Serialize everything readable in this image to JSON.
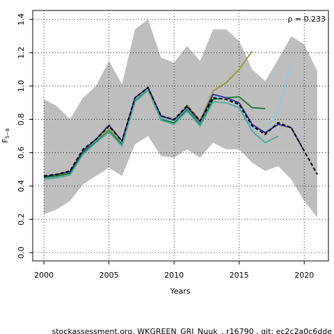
{
  "chart_data": {
    "type": "line",
    "ylabel_main": "F",
    "ylabel_sub": "5−8",
    "xlabel": "Years",
    "annotation": "ρ = 0.233",
    "footer": "stockassessment.org, WKGREEN_GRI_Nuuk_, r16790 , git: ec2c2a0c6dde",
    "x": [
      2000,
      2001,
      2002,
      2003,
      2004,
      2005,
      2006,
      2007,
      2008,
      2009,
      2010,
      2011,
      2012,
      2013,
      2014,
      2015,
      2016,
      2017,
      2018,
      2019,
      2020,
      2021
    ],
    "band": {
      "color": "#bebebe",
      "upper": [
        0.92,
        0.88,
        0.8,
        0.93,
        1.0,
        1.15,
        1.01,
        1.34,
        1.4,
        1.17,
        1.14,
        1.24,
        1.15,
        1.34,
        1.34,
        1.27,
        1.1,
        1.03,
        1.16,
        1.3,
        1.25,
        1.09
      ],
      "lower": [
        0.23,
        0.26,
        0.31,
        0.41,
        0.46,
        0.51,
        0.46,
        0.65,
        0.7,
        0.58,
        0.57,
        0.62,
        0.57,
        0.66,
        0.62,
        0.62,
        0.54,
        0.49,
        0.52,
        0.44,
        0.31,
        0.21
      ]
    },
    "series": [
      {
        "color": "#999933",
        "values": [
          0.45,
          0.465,
          0.48,
          0.605,
          0.67,
          0.745,
          0.655,
          0.925,
          0.995,
          0.815,
          0.79,
          0.885,
          0.795,
          0.97,
          1.02,
          1.1,
          1.21,
          null,
          null,
          null,
          null,
          null
        ]
      },
      {
        "color": "#117733",
        "values": [
          0.45,
          0.46,
          0.475,
          0.6,
          0.665,
          0.73,
          0.65,
          0.91,
          0.98,
          0.8,
          0.78,
          0.86,
          0.77,
          0.92,
          0.93,
          0.935,
          0.87,
          0.865,
          null,
          null,
          null,
          null
        ]
      },
      {
        "color": "#44aa99",
        "values": [
          0.44,
          0.45,
          0.465,
          0.59,
          0.66,
          0.725,
          0.64,
          0.905,
          0.975,
          0.795,
          0.77,
          0.85,
          0.76,
          0.905,
          0.9,
          0.87,
          0.73,
          0.66,
          0.7,
          null,
          null,
          null
        ]
      },
      {
        "color": "#88ccee",
        "values": [
          0.455,
          0.47,
          0.485,
          0.61,
          0.675,
          0.76,
          0.665,
          0.925,
          0.985,
          0.815,
          0.79,
          0.87,
          0.78,
          0.94,
          0.925,
          0.895,
          0.75,
          0.72,
          0.86,
          1.13,
          null,
          null
        ]
      },
      {
        "color": "#332288",
        "values": [
          0.455,
          0.47,
          0.485,
          0.61,
          0.68,
          0.765,
          0.67,
          0.93,
          0.99,
          0.82,
          0.795,
          0.875,
          0.785,
          0.95,
          0.93,
          0.9,
          0.77,
          0.72,
          0.77,
          0.75,
          0.61,
          null
        ]
      },
      {
        "color": "#000000",
        "dashed": true,
        "values": [
          0.46,
          0.47,
          0.49,
          0.62,
          0.68,
          0.76,
          0.67,
          0.93,
          0.99,
          0.82,
          0.8,
          0.88,
          0.79,
          0.93,
          0.92,
          0.89,
          0.76,
          0.71,
          0.78,
          0.75,
          0.61,
          0.47
        ]
      }
    ],
    "xlim": [
      1999.14,
      2021.86
    ],
    "ylim": [
      -0.05,
      1.454
    ],
    "xticks": [
      2000,
      2005,
      2010,
      2015,
      2020
    ],
    "yticks": [
      {
        "value": 0,
        "label": "0.0"
      },
      0.2,
      0.4,
      0.6,
      0.8,
      {
        "value": 1,
        "label": "1.0"
      },
      1.2,
      1.4
    ],
    "grid": true
  }
}
